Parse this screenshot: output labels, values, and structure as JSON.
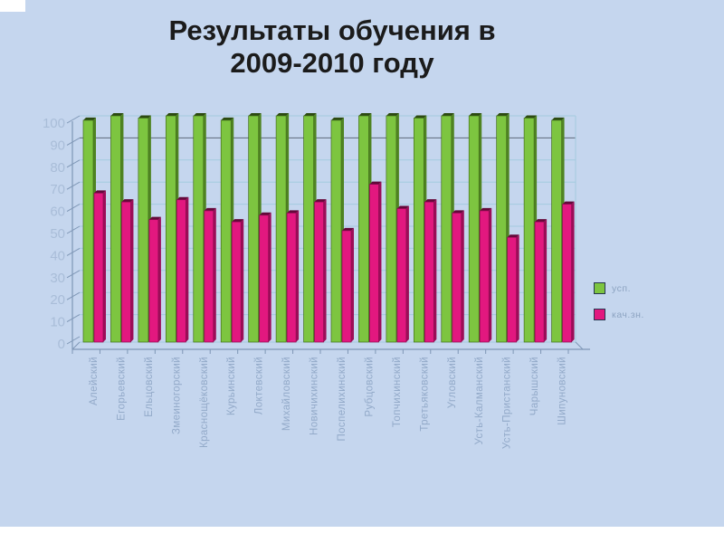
{
  "slide": {
    "background": "#c5d6ee",
    "title_line1": "Результаты обучения в",
    "title_line2": "2009-2010 году"
  },
  "chart_data": {
    "type": "bar",
    "title": "Результаты обучения в 2009-2010 году",
    "xlabel": "",
    "ylabel": "",
    "ylim": [
      0,
      100
    ],
    "yticks": [
      0,
      10,
      20,
      30,
      40,
      50,
      60,
      70,
      80,
      90,
      100
    ],
    "grid": true,
    "grid_dark_at": 90,
    "legend_position": "right",
    "categories": [
      "Алейский",
      "Егорьевский",
      "Ельцовский",
      "Змеиногорский",
      "Краснощёковский",
      "Курьинский",
      "Локтевский",
      "Михайловский",
      "Новичихинский",
      "Поспелихинский",
      "Рубцовский",
      "Топчихинский",
      "Третьяковский",
      "Угловский",
      "Усть-Калманский",
      "Усть-Пристанский",
      "Чарышский",
      "Шипуновский"
    ],
    "series": [
      {
        "name": "усп.",
        "color": "#7dc540",
        "side_color": "#4f8422",
        "cap_color": "#2c4a11",
        "edge_color": "#436f1b",
        "values": [
          98,
          100,
          99,
          100,
          100,
          98,
          100,
          100,
          100,
          98,
          100,
          100,
          99,
          100,
          100,
          100,
          99,
          98
        ]
      },
      {
        "name": "кач.зн.",
        "color": "#e2187f",
        "side_color": "#9c0d58",
        "cap_color": "#63083a",
        "edge_color": "#8f0b50",
        "values": [
          65,
          61,
          53,
          62,
          57,
          52,
          55,
          56,
          61,
          48,
          69,
          58,
          61,
          56,
          57,
          45,
          52,
          60
        ]
      }
    ],
    "style": {
      "grid_color": "#a3cbdf",
      "grid_dark_color": "#5d6978",
      "axis_color": "#7f97b6",
      "ytick_label_color": "#a9bdd8",
      "xtick_label_color": "#93aac9"
    }
  }
}
